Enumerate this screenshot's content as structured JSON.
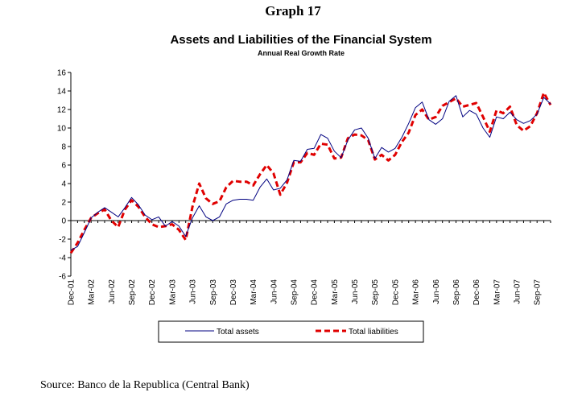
{
  "figure": {
    "label": "Graph 17",
    "source": "Source: Banco de la Republica (Central Bank)"
  },
  "chart_data": {
    "type": "line",
    "title": "Assets and Liabilities of the Financial System",
    "subtitle": "Annual Real Growth Rate",
    "xlabel": "",
    "ylabel": "",
    "ylim": [
      -6,
      16
    ],
    "yticks": [
      -6,
      -4,
      -2,
      0,
      2,
      4,
      6,
      8,
      10,
      12,
      14,
      16
    ],
    "grid": false,
    "legend_position": "bottom",
    "x_start": "Dec-01",
    "x_frequency": "monthly",
    "xtick_labels": [
      "Dec-01",
      "Mar-02",
      "Jun-02",
      "Sep-02",
      "Dec-02",
      "Mar-03",
      "Jun-03",
      "Sep-03",
      "Dec-03",
      "Mar-04",
      "Jun-04",
      "Sep-04",
      "Dec-04",
      "Mar-05",
      "Jun-05",
      "Sep-05",
      "Dec-05",
      "Mar-06",
      "Jun-06",
      "Sep-06",
      "Dec-06",
      "Mar-07",
      "Jun-07",
      "Sep-07"
    ],
    "series": [
      {
        "name": "Total assets",
        "color": "#000080",
        "style": "solid",
        "values": [
          -3.2,
          -2.8,
          -1.3,
          0.3,
          0.9,
          1.4,
          0.9,
          0.4,
          1.4,
          2.5,
          1.7,
          0.6,
          0.1,
          0.4,
          -0.6,
          -0.1,
          -0.6,
          -1.7,
          0.3,
          1.6,
          0.4,
          0.0,
          0.4,
          1.8,
          2.2,
          2.3,
          2.3,
          2.2,
          3.6,
          4.5,
          3.3,
          3.5,
          4.4,
          6.5,
          6.4,
          7.7,
          7.8,
          9.3,
          8.9,
          7.5,
          6.8,
          8.7,
          9.8,
          10.0,
          8.9,
          6.7,
          7.9,
          7.4,
          7.8,
          9.0,
          10.5,
          12.2,
          12.8,
          10.9,
          10.4,
          11.0,
          12.9,
          13.5,
          11.2,
          11.9,
          11.5,
          10.0,
          9.0,
          11.2,
          11.0,
          11.7,
          10.9,
          10.5,
          10.8,
          11.5,
          13.3,
          12.6
        ]
      },
      {
        "name": "Total liabilities",
        "color": "#e00000",
        "style": "dashed",
        "values": [
          -3.5,
          -2.4,
          -1.0,
          0.3,
          0.8,
          1.2,
          0.0,
          -0.7,
          1.2,
          2.2,
          1.5,
          0.4,
          -0.4,
          -0.7,
          -0.6,
          -0.4,
          -1.0,
          -2.1,
          1.5,
          4.0,
          2.4,
          1.8,
          2.1,
          3.6,
          4.3,
          4.2,
          4.2,
          3.8,
          5.0,
          6.0,
          5.1,
          2.8,
          4.1,
          6.3,
          6.3,
          7.3,
          7.1,
          8.3,
          8.2,
          6.7,
          6.8,
          8.9,
          9.3,
          9.2,
          8.7,
          6.6,
          7.1,
          6.5,
          7.1,
          8.5,
          9.5,
          11.4,
          12.0,
          10.9,
          11.2,
          12.4,
          12.8,
          13.2,
          12.3,
          12.5,
          12.7,
          11.2,
          9.6,
          11.9,
          11.6,
          12.3,
          10.3,
          9.7,
          10.2,
          11.6,
          13.8,
          12.5
        ]
      }
    ]
  }
}
